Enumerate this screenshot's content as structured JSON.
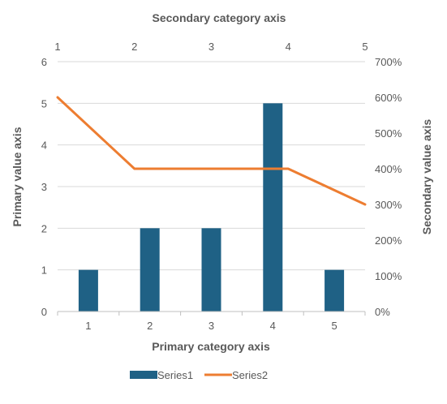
{
  "chart_data": {
    "type": "bar",
    "categories": [
      "1",
      "2",
      "3",
      "4",
      "5"
    ],
    "series": [
      {
        "name": "Series1",
        "type": "bar",
        "axis": "primary",
        "values": [
          1,
          2,
          2,
          5,
          1
        ],
        "color": "#1f6185"
      },
      {
        "name": "Series2",
        "type": "line",
        "axis": "secondary",
        "values": [
          6,
          4,
          4,
          4,
          3
        ],
        "color": "#ed7d31"
      }
    ],
    "primary_category_axis": {
      "title": "Primary category axis",
      "ticks": [
        "1",
        "2",
        "3",
        "4",
        "5"
      ]
    },
    "secondary_category_axis": {
      "title": "Secondary category axis",
      "ticks": [
        "1",
        "2",
        "3",
        "4",
        "5"
      ]
    },
    "primary_value_axis": {
      "title": "Primary value axis",
      "ylim": [
        0,
        6
      ],
      "ticks": [
        "0",
        "1",
        "2",
        "3",
        "4",
        "5",
        "6"
      ]
    },
    "secondary_value_axis": {
      "title": "Secondary value axis",
      "ylim": [
        0,
        7
      ],
      "ticks": [
        "0%",
        "100%",
        "200%",
        "300%",
        "400%",
        "500%",
        "600%",
        "700%"
      ]
    },
    "grid": true,
    "legend_position": "bottom",
    "colors": {
      "text": "#595959",
      "gridline": "#d9d9d9",
      "axis_line": "#bfbfbf"
    }
  }
}
